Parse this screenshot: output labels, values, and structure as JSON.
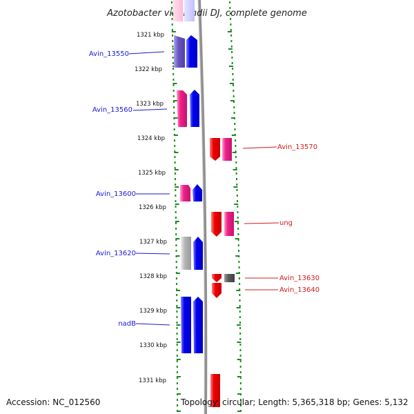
{
  "title": "Azotobacter vinelandii DJ, complete genome",
  "footer": {
    "accession": "Accession: NC_012560",
    "summary": "Topology: circular; Length: 5,365,318 bp; Genes: 5,132"
  },
  "colors": {
    "minus_strand_primary": "#0000ee",
    "plus_strand_primary": "#ee0000",
    "magenta": "#ee2288",
    "purple": "#6a55c0",
    "gray": "#b4b4b4",
    "dark_gray": "#5a5a5a",
    "tick": "#1a8a1a",
    "backbone": "#909090",
    "left_label": "#1a1ad0",
    "right_label": "#d01a1a"
  },
  "ruler": [
    {
      "label": "1321 kbp"
    },
    {
      "label": "1322 kbp"
    },
    {
      "label": "1323 kbp"
    },
    {
      "label": "1324 kbp"
    },
    {
      "label": "1325 kbp"
    },
    {
      "label": "1326 kbp"
    },
    {
      "label": "1327 kbp"
    },
    {
      "label": "1328 kbp"
    },
    {
      "label": "1329 kbp"
    },
    {
      "label": "1330 kbp"
    },
    {
      "label": "1331 kbp"
    }
  ],
  "left_labels": [
    {
      "text": "Avin_13550"
    },
    {
      "text": "Avin_13560"
    },
    {
      "text": "Avin_13600"
    },
    {
      "text": "Avin_13620"
    },
    {
      "text": "nadB"
    }
  ],
  "right_labels": [
    {
      "text": "Avin_13570"
    },
    {
      "text": "ung"
    },
    {
      "text": "Avin_13630"
    },
    {
      "text": "Avin_13640"
    }
  ],
  "features": [
    {
      "strand": "left",
      "track": "inner",
      "color": "blue"
    },
    {
      "strand": "left",
      "track": "outer",
      "color": "purple"
    },
    {
      "strand": "left",
      "track": "inner",
      "color": "blue"
    },
    {
      "strand": "left",
      "track": "outer",
      "color": "magenta"
    },
    {
      "strand": "left",
      "track": "inner",
      "color": "blue"
    },
    {
      "strand": "left",
      "track": "outer",
      "color": "magenta"
    },
    {
      "strand": "left",
      "track": "inner",
      "color": "blue"
    },
    {
      "strand": "left",
      "track": "outer",
      "color": "gray"
    },
    {
      "strand": "left",
      "track": "inner",
      "color": "blue"
    },
    {
      "strand": "left",
      "track": "outer",
      "color": "blue"
    },
    {
      "strand": "left",
      "track": "inner",
      "color": "blue"
    },
    {
      "strand": "right",
      "track": "inner",
      "color": "red"
    },
    {
      "strand": "right",
      "track": "outer",
      "color": "magenta"
    },
    {
      "strand": "right",
      "track": "inner",
      "color": "red"
    },
    {
      "strand": "right",
      "track": "outer",
      "color": "magenta"
    },
    {
      "strand": "right",
      "track": "inner",
      "color": "red"
    },
    {
      "strand": "right",
      "track": "outer",
      "color": "dark_gray"
    },
    {
      "strand": "right",
      "track": "inner",
      "color": "red"
    },
    {
      "strand": "right",
      "track": "inner",
      "color": "red"
    }
  ]
}
